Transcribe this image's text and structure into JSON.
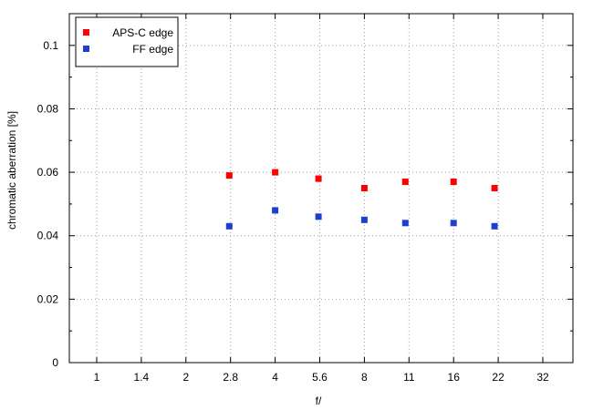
{
  "chart_data": {
    "type": "scatter",
    "xlabel": "f/",
    "ylabel": "chromatic aberration [%]",
    "categories": [
      "1",
      "1.4",
      "2",
      "2.8",
      "4",
      "5.6",
      "8",
      "11",
      "16",
      "22",
      "32"
    ],
    "x_scale": "log",
    "ylim": [
      0,
      0.11
    ],
    "y_ticks": [
      "0",
      "0.02",
      "0.04",
      "0.06",
      "0.08",
      "0.1"
    ],
    "grid": true,
    "legend_position": "top-left",
    "series": [
      {
        "name": "APS-C edge",
        "color": "#ff0000",
        "points": [
          {
            "x": 2.8,
            "y": 0.059
          },
          {
            "x": 4,
            "y": 0.06
          },
          {
            "x": 5.6,
            "y": 0.058
          },
          {
            "x": 8,
            "y": 0.055
          },
          {
            "x": 11,
            "y": 0.057
          },
          {
            "x": 16,
            "y": 0.057
          },
          {
            "x": 22,
            "y": 0.055
          }
        ]
      },
      {
        "name": "FF edge",
        "color": "#1f3fd0",
        "points": [
          {
            "x": 2.8,
            "y": 0.043
          },
          {
            "x": 4,
            "y": 0.048
          },
          {
            "x": 5.6,
            "y": 0.046
          },
          {
            "x": 8,
            "y": 0.045
          },
          {
            "x": 11,
            "y": 0.044
          },
          {
            "x": 16,
            "y": 0.044
          },
          {
            "x": 22,
            "y": 0.043
          }
        ]
      }
    ]
  }
}
